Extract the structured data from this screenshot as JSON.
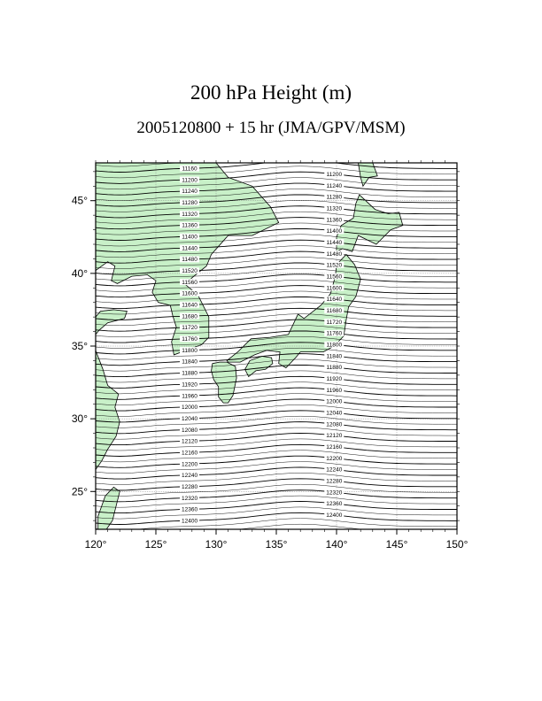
{
  "title": "200 hPa Height (m)",
  "subtitle": "2005120800 + 15 hr (JMA/GPV/MSM)",
  "colors": {
    "land": "#c8f0c8",
    "coast": "#000000",
    "contour": "#000000",
    "grid": "#888888"
  },
  "map": {
    "projection": "equirectangular",
    "lon_range": [
      120,
      150
    ],
    "lat_range": [
      22.4,
      47.6
    ],
    "gridlines": true,
    "lon_ticks": [
      {
        "v": 120,
        "label": "120°"
      },
      {
        "v": 125,
        "label": "125°"
      },
      {
        "v": 130,
        "label": "130°"
      },
      {
        "v": 135,
        "label": "135°"
      },
      {
        "v": 140,
        "label": "140°"
      },
      {
        "v": 145,
        "label": "145°"
      },
      {
        "v": 150,
        "label": "150°"
      }
    ],
    "lat_ticks": [
      {
        "v": 25,
        "label": "25°"
      },
      {
        "v": 30,
        "label": "30°"
      },
      {
        "v": 35,
        "label": "35°"
      },
      {
        "v": 40,
        "label": "40°"
      },
      {
        "v": 45,
        "label": "45°"
      }
    ],
    "contour_interval": 20,
    "contours_labeled": [
      11160,
      11200,
      11240,
      11280,
      11320,
      11360,
      11400,
      11440,
      11480,
      11520,
      11560,
      11600,
      11640,
      11680,
      11720,
      11760,
      11800,
      11840,
      11880,
      11920,
      11960,
      12000,
      12040,
      12080,
      12120,
      12160,
      12200,
      12240,
      12280,
      12320,
      12360,
      12400
    ]
  }
}
